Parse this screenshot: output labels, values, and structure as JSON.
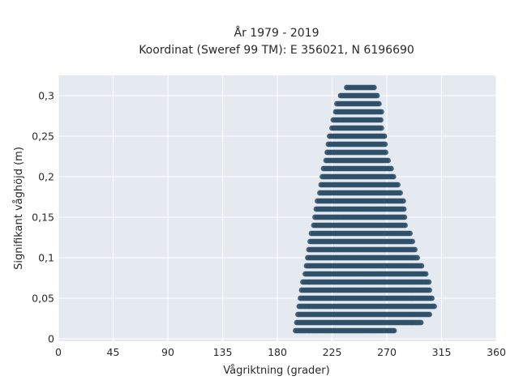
{
  "chart_data": {
    "type": "scatter",
    "title_line1": "År 1979 - 2019",
    "title_line2": "Koordinat (Sweref 99 TM): E 356021, N 6196690",
    "xlabel": "Vågriktning (grader)",
    "ylabel": "Signifikant våghöjd (m)",
    "xlim": [
      0,
      360
    ],
    "ylim": [
      -0.003,
      0.325
    ],
    "xticks": [
      0,
      45,
      90,
      135,
      180,
      225,
      270,
      315,
      360
    ],
    "xtick_labels": [
      "0",
      "45",
      "90",
      "135",
      "180",
      "225",
      "270",
      "315",
      "360"
    ],
    "yticks": [
      0,
      0.05,
      0.1,
      0.15,
      0.2,
      0.25,
      0.3
    ],
    "ytick_labels": [
      "0",
      "0,05",
      "0,1",
      "0,15",
      "0,2",
      "0,25",
      "0,3"
    ],
    "grid": true,
    "background": "#e5e9f0",
    "marker_color": "#2f5068",
    "point_rows": [
      {
        "y": 0.01,
        "x_min": 195,
        "x_max": 276
      },
      {
        "y": 0.02,
        "x_min": 196,
        "x_max": 298
      },
      {
        "y": 0.03,
        "x_min": 197,
        "x_max": 305
      },
      {
        "y": 0.04,
        "x_min": 198,
        "x_max": 309
      },
      {
        "y": 0.05,
        "x_min": 199,
        "x_max": 307
      },
      {
        "y": 0.06,
        "x_min": 200,
        "x_max": 306
      },
      {
        "y": 0.07,
        "x_min": 201,
        "x_max": 305
      },
      {
        "y": 0.08,
        "x_min": 203,
        "x_max": 302
      },
      {
        "y": 0.09,
        "x_min": 204,
        "x_max": 299
      },
      {
        "y": 0.1,
        "x_min": 205,
        "x_max": 295
      },
      {
        "y": 0.11,
        "x_min": 206,
        "x_max": 293
      },
      {
        "y": 0.12,
        "x_min": 207,
        "x_max": 291
      },
      {
        "y": 0.13,
        "x_min": 208,
        "x_max": 289
      },
      {
        "y": 0.14,
        "x_min": 210,
        "x_max": 286
      },
      {
        "y": 0.15,
        "x_min": 211,
        "x_max": 285
      },
      {
        "y": 0.16,
        "x_min": 212,
        "x_max": 284
      },
      {
        "y": 0.17,
        "x_min": 213,
        "x_max": 284
      },
      {
        "y": 0.18,
        "x_min": 215,
        "x_max": 282
      },
      {
        "y": 0.19,
        "x_min": 216,
        "x_max": 279
      },
      {
        "y": 0.2,
        "x_min": 217,
        "x_max": 276
      },
      {
        "y": 0.21,
        "x_min": 218,
        "x_max": 274
      },
      {
        "y": 0.22,
        "x_min": 220,
        "x_max": 272
      },
      {
        "y": 0.23,
        "x_min": 221,
        "x_max": 269
      },
      {
        "y": 0.24,
        "x_min": 222,
        "x_max": 269
      },
      {
        "y": 0.25,
        "x_min": 223,
        "x_max": 268
      },
      {
        "y": 0.26,
        "x_min": 225,
        "x_max": 266
      },
      {
        "y": 0.27,
        "x_min": 226,
        "x_max": 266
      },
      {
        "y": 0.28,
        "x_min": 228,
        "x_max": 266
      },
      {
        "y": 0.29,
        "x_min": 229,
        "x_max": 264
      },
      {
        "y": 0.3,
        "x_min": 232,
        "x_max": 262
      },
      {
        "y": 0.31,
        "x_min": 237,
        "x_max": 260
      }
    ]
  }
}
